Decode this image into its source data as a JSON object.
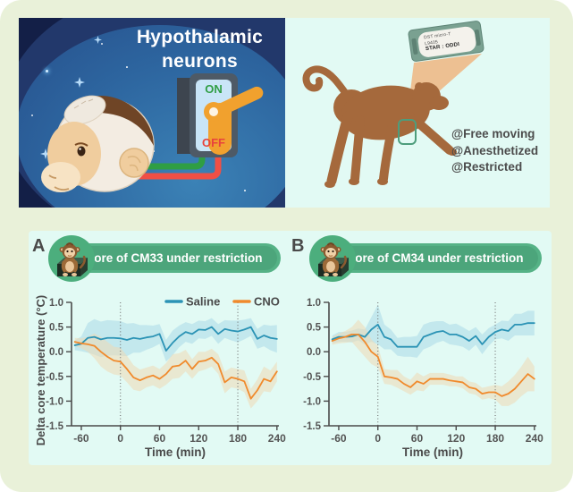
{
  "colors": {
    "saline": "#2b93b5",
    "cno": "#f08a2c",
    "saline_band": "#a9d8e8",
    "cno_band": "#eed9b4",
    "banner_green": "#55b286",
    "panel_bg": "#e2faf4",
    "outer_bg": "#e9f1d9",
    "axis_text": "#545454"
  },
  "top_left": {
    "title_line1": "Hypothalamic",
    "title_line2": "neurons",
    "switch_on": "ON",
    "switch_off": "OFF"
  },
  "top_right": {
    "device_line1": "DST micro-T",
    "device_line2": "L9405",
    "device_line3": "STAR : ODDI",
    "condition1": "@Free moving",
    "condition2": "@Anesthetized",
    "condition3": "@Restricted"
  },
  "chart_data": [
    {
      "type": "line",
      "panel_label": "A",
      "title": "Tcore of CM33 under restriction",
      "xlabel": "Time (min)",
      "ylabel": "Delta core temperature (°C)",
      "xlim": [
        -75,
        243
      ],
      "ylim": [
        -1.5,
        1.0
      ],
      "xticks": [
        -60,
        0,
        60,
        120,
        180,
        240
      ],
      "yticks": [
        1.0,
        0.5,
        0.0,
        -0.5,
        -1.0,
        -1.5
      ],
      "vlines": [
        0,
        180
      ],
      "show_legend": true,
      "x": [
        -70,
        -60,
        -50,
        -40,
        -30,
        -20,
        -10,
        0,
        10,
        20,
        30,
        40,
        50,
        60,
        70,
        80,
        90,
        100,
        110,
        120,
        130,
        140,
        150,
        160,
        170,
        180,
        190,
        200,
        210,
        220,
        230,
        240
      ],
      "series": [
        {
          "name": "Saline",
          "color_key": "saline",
          "band_key": "saline_band",
          "values": [
            0.13,
            0.16,
            0.28,
            0.3,
            0.25,
            0.28,
            0.28,
            0.27,
            0.24,
            0.28,
            0.26,
            0.29,
            0.31,
            0.36,
            0.02,
            0.18,
            0.31,
            0.4,
            0.36,
            0.45,
            0.44,
            0.5,
            0.36,
            0.46,
            0.43,
            0.41,
            0.45,
            0.5,
            0.26,
            0.33,
            0.28,
            0.26
          ],
          "band": [
            0.1,
            0.15,
            0.3,
            0.36,
            0.36,
            0.36,
            0.35,
            0.35,
            0.33,
            0.3,
            0.28,
            0.25,
            0.22,
            0.2,
            0.22,
            0.25,
            0.22,
            0.2,
            0.2,
            0.18,
            0.18,
            0.18,
            0.2,
            0.18,
            0.2,
            0.22,
            0.2,
            0.18,
            0.2,
            0.22,
            0.25,
            0.28
          ]
        },
        {
          "name": "CNO",
          "color_key": "cno",
          "band_key": "cno_band",
          "values": [
            0.2,
            0.17,
            0.15,
            0.12,
            0.0,
            -0.1,
            -0.18,
            -0.2,
            -0.35,
            -0.52,
            -0.58,
            -0.52,
            -0.48,
            -0.55,
            -0.45,
            -0.3,
            -0.28,
            -0.18,
            -0.35,
            -0.2,
            -0.18,
            -0.12,
            -0.25,
            -0.62,
            -0.52,
            -0.55,
            -0.6,
            -0.95,
            -0.78,
            -0.55,
            -0.6,
            -0.4
          ],
          "band": [
            0.08,
            0.1,
            0.15,
            0.25,
            0.3,
            0.3,
            0.28,
            0.28,
            0.27,
            0.25,
            0.22,
            0.2,
            0.2,
            0.2,
            0.22,
            0.25,
            0.25,
            0.22,
            0.2,
            0.2,
            0.18,
            0.18,
            0.2,
            0.22,
            0.2,
            0.2,
            0.22,
            0.2,
            0.22,
            0.25,
            0.22,
            0.2
          ]
        }
      ]
    },
    {
      "type": "line",
      "panel_label": "B",
      "title": "Tcore of CM34 under restriction",
      "xlabel": "Time (min)",
      "ylabel": "Delta core temperature (°C)",
      "xlim": [
        -75,
        243
      ],
      "ylim": [
        -1.5,
        1.0
      ],
      "xticks": [
        -60,
        0,
        60,
        120,
        180,
        240
      ],
      "yticks": [
        1.0,
        0.5,
        0.0,
        -0.5,
        -1.0,
        -1.5
      ],
      "vlines": [
        0,
        180
      ],
      "show_legend": false,
      "x": [
        -70,
        -60,
        -50,
        -40,
        -30,
        -20,
        -10,
        0,
        10,
        20,
        30,
        40,
        50,
        60,
        70,
        80,
        90,
        100,
        110,
        120,
        130,
        140,
        150,
        160,
        170,
        180,
        190,
        200,
        210,
        220,
        230,
        240
      ],
      "series": [
        {
          "name": "Saline",
          "color_key": "saline",
          "band_key": "saline_band",
          "values": [
            0.25,
            0.3,
            0.3,
            0.31,
            0.35,
            0.3,
            0.45,
            0.55,
            0.3,
            0.25,
            0.1,
            0.1,
            0.1,
            0.1,
            0.3,
            0.35,
            0.4,
            0.42,
            0.35,
            0.35,
            0.3,
            0.22,
            0.32,
            0.15,
            0.3,
            0.4,
            0.45,
            0.42,
            0.55,
            0.55,
            0.58,
            0.58
          ],
          "band": [
            0.08,
            0.1,
            0.1,
            0.12,
            0.12,
            0.15,
            0.25,
            0.4,
            0.25,
            0.2,
            0.18,
            0.2,
            0.2,
            0.22,
            0.25,
            0.25,
            0.22,
            0.2,
            0.2,
            0.22,
            0.2,
            0.2,
            0.18,
            0.2,
            0.18,
            0.15,
            0.18,
            0.2,
            0.22,
            0.22,
            0.25,
            0.25
          ]
        },
        {
          "name": "CNO",
          "color_key": "cno",
          "band_key": "cno_band",
          "values": [
            0.22,
            0.27,
            0.3,
            0.35,
            0.35,
            0.2,
            0.0,
            -0.1,
            -0.5,
            -0.52,
            -0.55,
            -0.65,
            -0.72,
            -0.6,
            -0.65,
            -0.55,
            -0.55,
            -0.55,
            -0.58,
            -0.6,
            -0.62,
            -0.72,
            -0.75,
            -0.85,
            -0.82,
            -0.82,
            -0.9,
            -0.85,
            -0.75,
            -0.6,
            -0.45,
            -0.55
          ],
          "band": [
            0.08,
            0.1,
            0.12,
            0.15,
            0.3,
            0.3,
            0.25,
            0.22,
            0.15,
            0.15,
            0.18,
            0.15,
            0.15,
            0.18,
            0.15,
            0.12,
            0.12,
            0.12,
            0.12,
            0.1,
            0.12,
            0.12,
            0.12,
            0.12,
            0.12,
            0.15,
            0.2,
            0.25,
            0.28,
            0.3,
            0.35,
            0.25
          ]
        }
      ]
    }
  ]
}
